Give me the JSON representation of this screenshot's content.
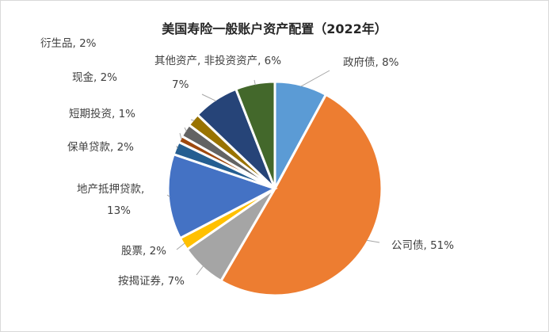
{
  "chart_data": {
    "type": "pie",
    "title": "美国寿险一般账户资产配置（2022年）",
    "start": "top",
    "direction": "clockwise",
    "slices": [
      {
        "name": "政府债",
        "value": 8,
        "label": "政府债, 8%",
        "color": "#5b9bd5"
      },
      {
        "name": "公司债",
        "value": 51,
        "label": "公司债, 51%",
        "color": "#ed7d31"
      },
      {
        "name": "按揭证券",
        "value": 7,
        "label": "按揭证券, 7%",
        "color": "#a5a5a5"
      },
      {
        "name": "股票",
        "value": 2,
        "label": "股票, 2%",
        "color": "#ffc000"
      },
      {
        "name": "地产抵押贷款",
        "value": 13,
        "label": "地产抵押贷款, 13%",
        "label_lines": [
          "地产抵押贷款,",
          "13%"
        ],
        "color": "#4472c4"
      },
      {
        "name": "保单贷款",
        "value": 2,
        "label": "保单贷款, 2%",
        "color": "#255e91"
      },
      {
        "name": "短期投资",
        "value": 1,
        "label": "短期投资, 1%",
        "color": "#9e480e"
      },
      {
        "name": "现金",
        "value": 2,
        "label": "现金, 2%",
        "color": "#636363"
      },
      {
        "name": "衍生品",
        "value": 2,
        "label": "衍生品, 2%",
        "color": "#997300"
      },
      {
        "name": "其他资产",
        "value": 7,
        "label": "7%",
        "color": "#264478"
      },
      {
        "name": "非投资资产",
        "value": 6,
        "label": "其他资产, 非投资资产, 6%",
        "color": "#43682b"
      }
    ]
  }
}
